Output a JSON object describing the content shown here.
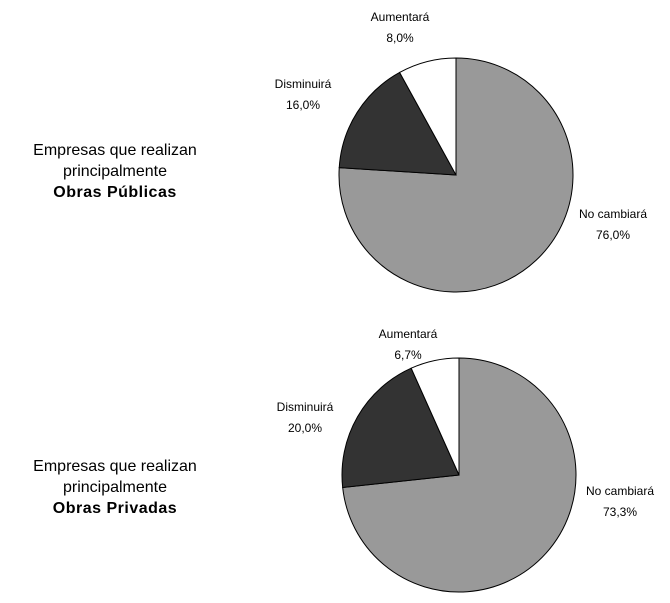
{
  "chart_data": [
    {
      "type": "pie",
      "title": "Empresas que realizan principalmente",
      "subtitle": "Obras Públicas",
      "categories": [
        "No cambiará",
        "Disminuirá",
        "Aumentará"
      ],
      "values": [
        76.0,
        16.0,
        8.0
      ],
      "value_labels": [
        "76,0%",
        "16,0%",
        "8,0%"
      ],
      "colors": [
        "#999999",
        "#333333",
        "#ffffff"
      ]
    },
    {
      "type": "pie",
      "title": "Empresas que realizan principalmente",
      "subtitle": "Obras Privadas",
      "categories": [
        "No cambiará",
        "Disminuirá",
        "Aumentará"
      ],
      "values": [
        73.3,
        20.0,
        6.7
      ],
      "value_labels": [
        "73,3%",
        "20,0%",
        "6,7%"
      ],
      "colors": [
        "#999999",
        "#333333",
        "#ffffff"
      ]
    }
  ]
}
